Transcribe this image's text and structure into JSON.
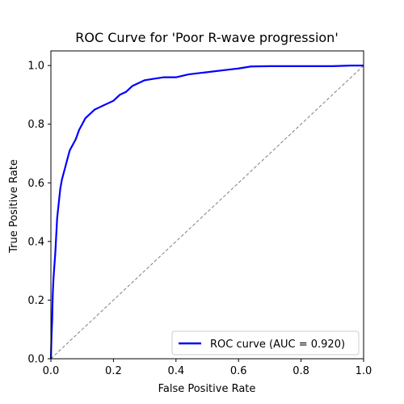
{
  "chart_data": {
    "type": "line",
    "title": "ROC Curve for 'Poor R-wave progression'",
    "xlabel": "False Positive Rate",
    "ylabel": "True Positive Rate",
    "xlim": [
      0.0,
      1.0
    ],
    "ylim": [
      0.0,
      1.05
    ],
    "xticks": [
      "0.0",
      "0.2",
      "0.4",
      "0.6",
      "0.8",
      "1.0"
    ],
    "yticks": [
      "0.0",
      "0.2",
      "0.4",
      "0.6",
      "0.8",
      "1.0"
    ],
    "grid": false,
    "legend_position": "lower-right",
    "series": [
      {
        "name": "ROC curve (AUC = 0.920)",
        "color": "#0000ff",
        "style": "solid",
        "x": [
          0.0,
          0.002,
          0.004,
          0.005,
          0.006,
          0.008,
          0.01,
          0.012,
          0.014,
          0.016,
          0.018,
          0.02,
          0.025,
          0.03,
          0.035,
          0.04,
          0.045,
          0.05,
          0.06,
          0.07,
          0.08,
          0.09,
          0.1,
          0.11,
          0.12,
          0.14,
          0.16,
          0.18,
          0.2,
          0.22,
          0.24,
          0.26,
          0.28,
          0.3,
          0.33,
          0.36,
          0.4,
          0.44,
          0.48,
          0.52,
          0.56,
          0.6,
          0.64,
          0.7,
          0.8,
          0.9,
          0.96,
          1.0
        ],
        "y": [
          0.0,
          0.08,
          0.13,
          0.18,
          0.22,
          0.27,
          0.3,
          0.33,
          0.36,
          0.4,
          0.44,
          0.48,
          0.53,
          0.58,
          0.61,
          0.63,
          0.65,
          0.67,
          0.71,
          0.73,
          0.75,
          0.78,
          0.8,
          0.82,
          0.83,
          0.85,
          0.86,
          0.87,
          0.88,
          0.9,
          0.91,
          0.93,
          0.94,
          0.95,
          0.955,
          0.96,
          0.96,
          0.97,
          0.975,
          0.98,
          0.985,
          0.99,
          0.997,
          0.998,
          0.998,
          0.998,
          1.0,
          1.0
        ]
      },
      {
        "name": "",
        "color": "#808080",
        "style": "dashed",
        "x": [
          0.0,
          1.0
        ],
        "y": [
          0.0,
          1.0
        ]
      }
    ]
  }
}
